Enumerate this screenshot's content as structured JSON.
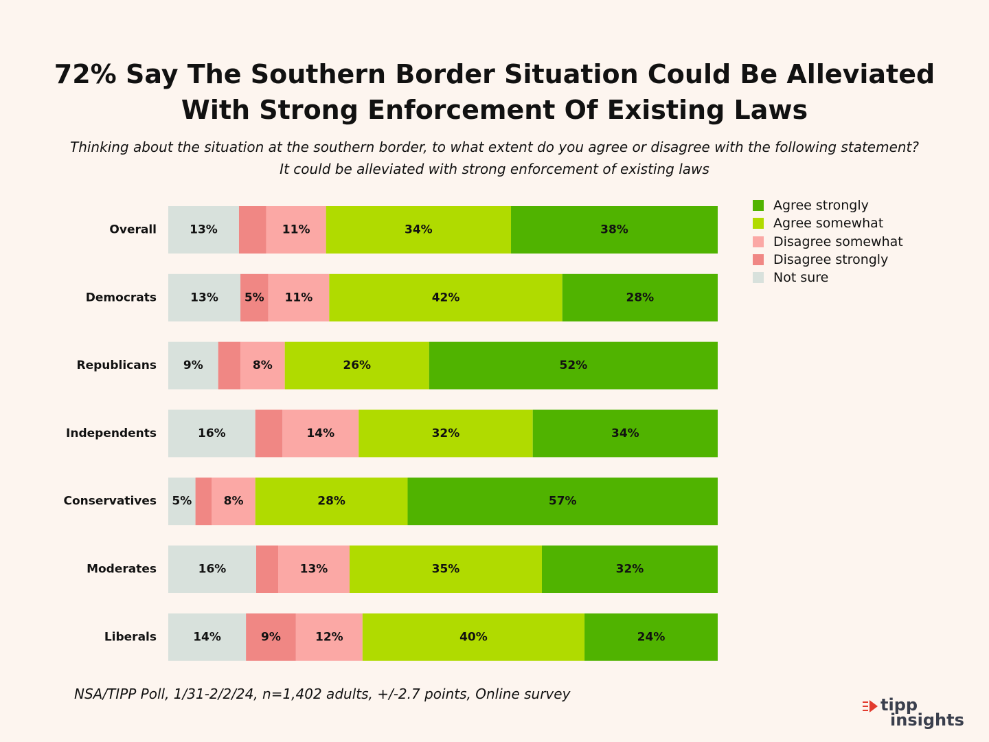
{
  "header": {
    "title_line1": "72% Say The Southern Border Situation Could Be Alleviated",
    "title_line2": "With Strong Enforcement Of Existing Laws",
    "subtitle": "Thinking about the situation at the southern border, to what extent do you agree or disagree with the following statement? It could be alleviated with strong enforcement of existing laws"
  },
  "footer": {
    "source": "NSA/TIPP Poll, 1/31-2/2/24, n=1,402 adults, +/-2.7 points, Online survey"
  },
  "logo": {
    "line1": "tipp",
    "line2": "insights"
  },
  "chart_data": {
    "type": "bar",
    "orientation": "horizontal",
    "stacked": true,
    "normalized": true,
    "title": "72% Say The Southern Border Situation Could Be Alleviated With Strong Enforcement Of Existing Laws",
    "categories": [
      "Overall",
      "Democrats",
      "Republicans",
      "Independents",
      "Conservatives",
      "Moderates",
      "Liberals"
    ],
    "series": [
      {
        "name": "Not sure",
        "color": "#d8e1dc",
        "values": [
          13,
          13,
          9,
          16,
          5,
          16,
          14
        ],
        "labels": [
          "13%",
          "13%",
          "9%",
          "16%",
          "5%",
          "16%",
          "14%"
        ]
      },
      {
        "name": "Disagree strongly",
        "color": "#f08784",
        "values": [
          5,
          5,
          4,
          5,
          3,
          4,
          9
        ],
        "labels": [
          "",
          "5%",
          "",
          "",
          "",
          "",
          "9%"
        ]
      },
      {
        "name": "Disagree somewhat",
        "color": "#fba8a5",
        "values": [
          11,
          11,
          8,
          14,
          8,
          13,
          12
        ],
        "labels": [
          "11%",
          "11%",
          "8%",
          "14%",
          "8%",
          "13%",
          "12%"
        ]
      },
      {
        "name": "Agree somewhat",
        "color": "#b0db00",
        "values": [
          34,
          42,
          26,
          32,
          28,
          35,
          40
        ],
        "labels": [
          "34%",
          "42%",
          "26%",
          "32%",
          "28%",
          "35%",
          "40%"
        ]
      },
      {
        "name": "Agree strongly",
        "color": "#50b300",
        "values": [
          38,
          28,
          52,
          34,
          57,
          32,
          24
        ],
        "labels": [
          "38%",
          "28%",
          "52%",
          "34%",
          "57%",
          "32%",
          "24%"
        ]
      }
    ],
    "legend": {
      "position": "right",
      "order": [
        "Agree strongly",
        "Agree somewhat",
        "Disagree somewhat",
        "Disagree strongly",
        "Not sure"
      ]
    },
    "grid": false
  }
}
